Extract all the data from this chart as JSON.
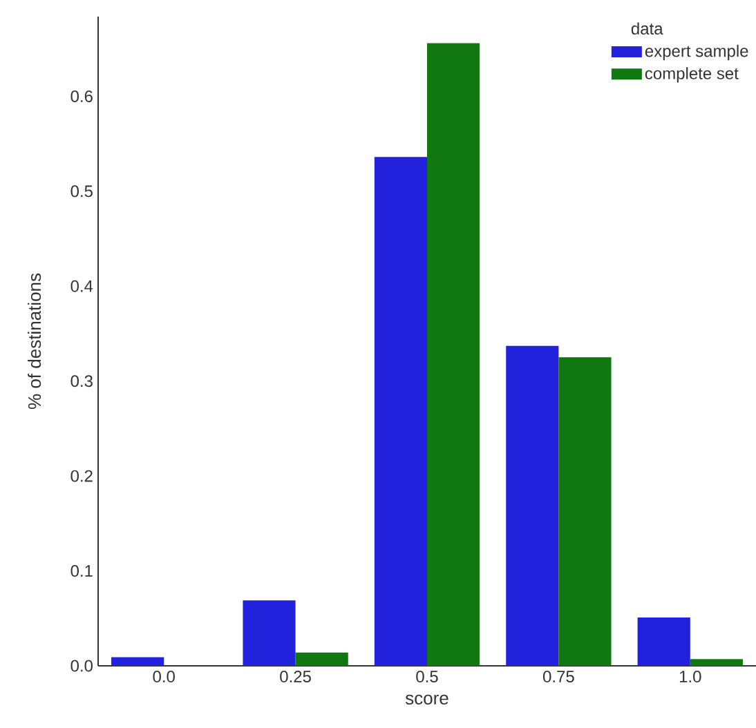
{
  "chart_data": {
    "type": "bar",
    "xlabel": "score",
    "ylabel": "% of destinations",
    "legend_title": "data",
    "legend": "top right",
    "grid": false,
    "categories": [
      "0.0",
      "0.25",
      "0.5",
      "0.75",
      "1.0"
    ],
    "series": [
      {
        "name": "expert sample",
        "color": "#2222dd",
        "values": [
          0.009,
          0.069,
          0.536,
          0.337,
          0.051
        ]
      },
      {
        "name": "complete set",
        "color": "#117711",
        "values": [
          0.0,
          0.014,
          0.656,
          0.325,
          0.007
        ]
      }
    ],
    "ylim": [
      0,
      0.684
    ],
    "yticks": [
      {
        "value": 0,
        "label": "0.0"
      },
      0.1,
      0.2,
      0.3,
      0.4,
      0.5,
      0.6
    ]
  }
}
